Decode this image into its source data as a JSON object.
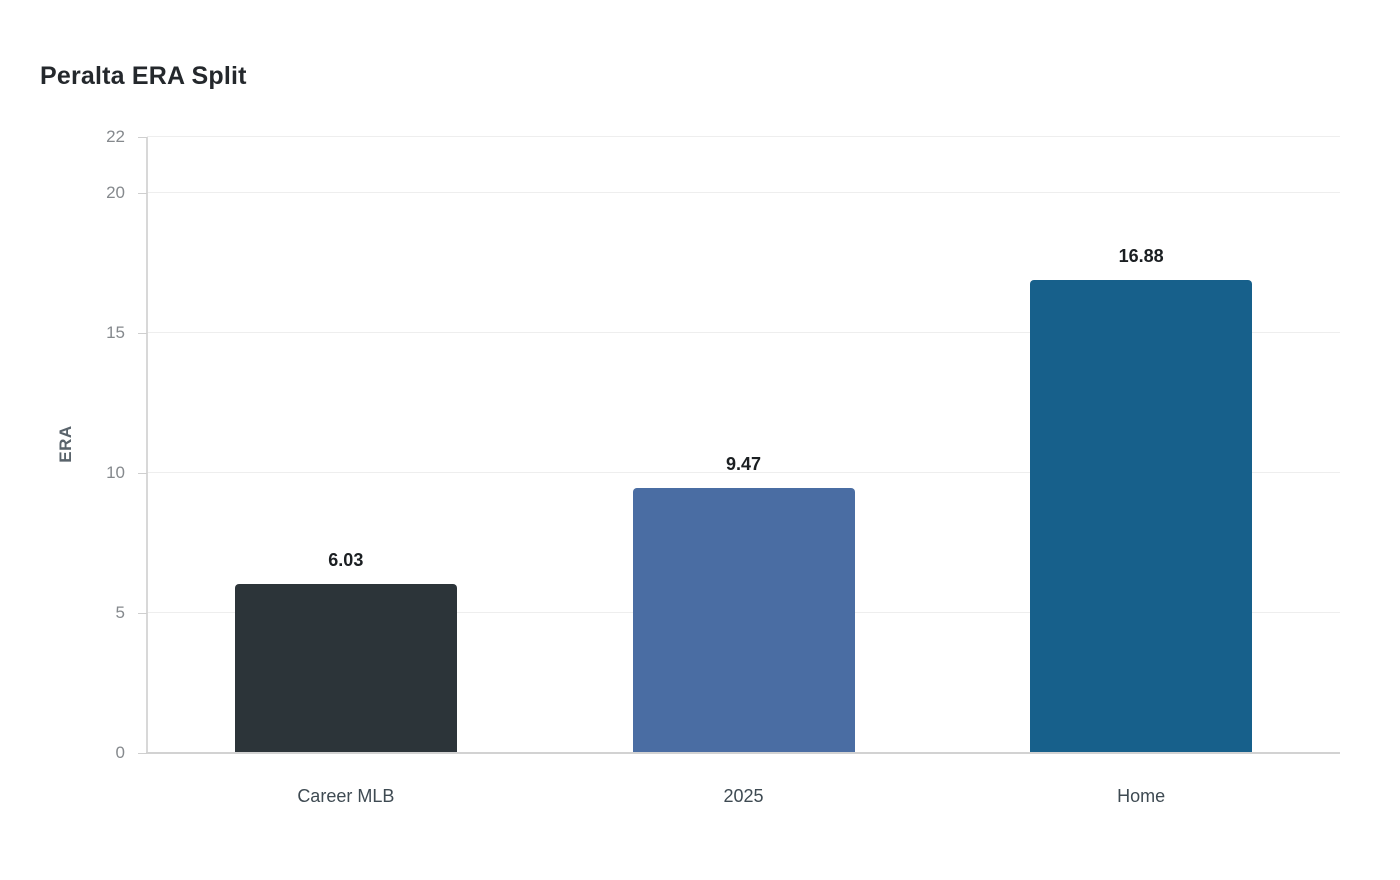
{
  "title": "Peralta ERA Split",
  "chart_data": {
    "type": "bar",
    "title": "Peralta ERA Split",
    "xlabel": "",
    "ylabel": "ERA",
    "categories": [
      "Career MLB",
      "2025",
      "Home"
    ],
    "values": [
      6.03,
      9.47,
      16.88
    ],
    "value_labels": [
      "6.03",
      "9.47",
      "16.88"
    ],
    "bar_colors": [
      "#2c3439",
      "#4a6da3",
      "#17608b"
    ],
    "ylim": [
      0,
      22
    ],
    "yticks": [
      0,
      5,
      10,
      15,
      20,
      22
    ],
    "ytick_labels": [
      "0",
      "5",
      "10",
      "15",
      "20",
      "22"
    ],
    "grid": true,
    "legend": false,
    "background": "#ffffff"
  }
}
